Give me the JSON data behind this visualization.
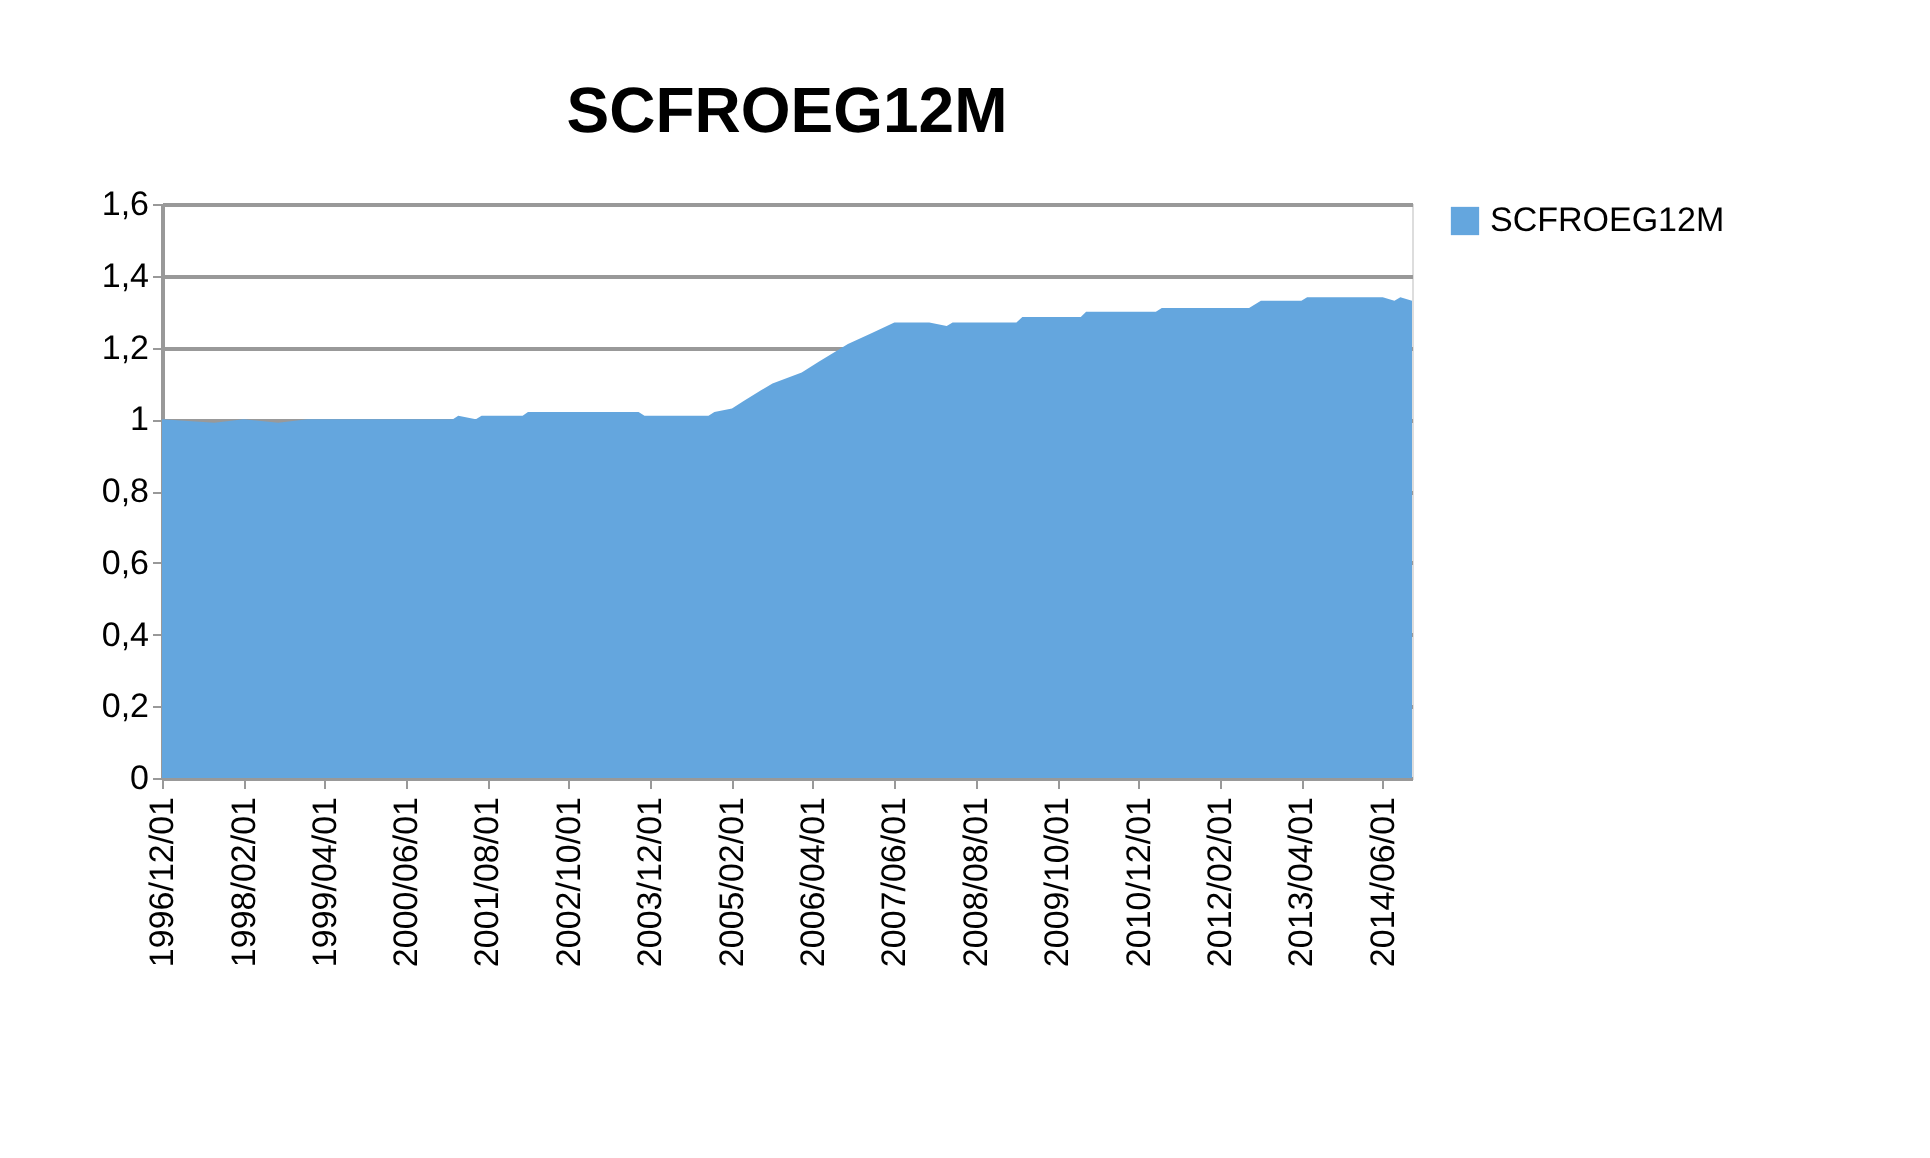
{
  "chart_data": {
    "type": "area",
    "title": "SCFROEG12M",
    "x": [
      "1996-12-01",
      "1997-09-01",
      "1998-02-01",
      "1998-08-01",
      "1999-01-01",
      "2001-02-01",
      "2001-03-01",
      "2001-06-01",
      "2001-07-01",
      "2002-02-01",
      "2002-03-01",
      "2003-10-01",
      "2003-11-01",
      "2004-10-01",
      "2004-11-01",
      "2005-02-01",
      "2005-04-01",
      "2005-07-01",
      "2005-09-01",
      "2006-02-01",
      "2006-05-01",
      "2006-10-01",
      "2007-02-01",
      "2007-06-01",
      "2007-12-01",
      "2008-03-01",
      "2008-04-01",
      "2009-03-01",
      "2009-04-01",
      "2010-02-01",
      "2010-03-01",
      "2011-03-01",
      "2011-04-01",
      "2012-07-01",
      "2012-09-01",
      "2013-04-01",
      "2013-05-01",
      "2014-06-01",
      "2014-08-01",
      "2014-09-01",
      "2014-11-01"
    ],
    "series": [
      {
        "name": "SCFROEG12M",
        "color": "#64a6de",
        "values": [
          1.0,
          0.99,
          1.0,
          0.99,
          1.0,
          1.0,
          1.01,
          1.0,
          1.01,
          1.01,
          1.02,
          1.02,
          1.01,
          1.01,
          1.02,
          1.03,
          1.05,
          1.08,
          1.1,
          1.13,
          1.16,
          1.21,
          1.24,
          1.27,
          1.27,
          1.26,
          1.27,
          1.27,
          1.285,
          1.285,
          1.3,
          1.3,
          1.31,
          1.31,
          1.33,
          1.33,
          1.34,
          1.34,
          1.33,
          1.34,
          1.33
        ]
      }
    ],
    "xlim": [
      "1996-12-01",
      "2014-11-01"
    ],
    "xticks": [
      {
        "value": "1996-12-01",
        "label": "1996/12/01"
      },
      {
        "value": "1998-02-01",
        "label": "1998/02/01"
      },
      {
        "value": "1999-04-01",
        "label": "1999/04/01"
      },
      {
        "value": "2000-06-01",
        "label": "2000/06/01"
      },
      {
        "value": "2001-08-01",
        "label": "2001/08/01"
      },
      {
        "value": "2002-10-01",
        "label": "2002/10/01"
      },
      {
        "value": "2003-12-01",
        "label": "2003/12/01"
      },
      {
        "value": "2005-02-01",
        "label": "2005/02/01"
      },
      {
        "value": "2006-04-01",
        "label": "2006/04/01"
      },
      {
        "value": "2007-06-01",
        "label": "2007/06/01"
      },
      {
        "value": "2008-08-01",
        "label": "2008/08/01"
      },
      {
        "value": "2009-10-01",
        "label": "2009/10/01"
      },
      {
        "value": "2010-12-01",
        "label": "2010/12/01"
      },
      {
        "value": "2012-02-01",
        "label": "2012/02/01"
      },
      {
        "value": "2013-04-01",
        "label": "2013/04/01"
      },
      {
        "value": "2014-06-01",
        "label": "2014/06/01"
      }
    ],
    "ylim": [
      0,
      1.6
    ],
    "yticks": [
      0,
      {
        "value": 0.2,
        "label": "0,2"
      },
      {
        "value": 0.4,
        "label": "0,4"
      },
      {
        "value": 0.6,
        "label": "0,6"
      },
      {
        "value": 0.8,
        "label": "0,8"
      },
      1,
      {
        "value": 1.2,
        "label": "1,2"
      },
      {
        "value": 1.4,
        "label": "1,4"
      },
      {
        "value": 1.6,
        "label": "1,6"
      }
    ],
    "grid": "y",
    "legend": "right"
  }
}
